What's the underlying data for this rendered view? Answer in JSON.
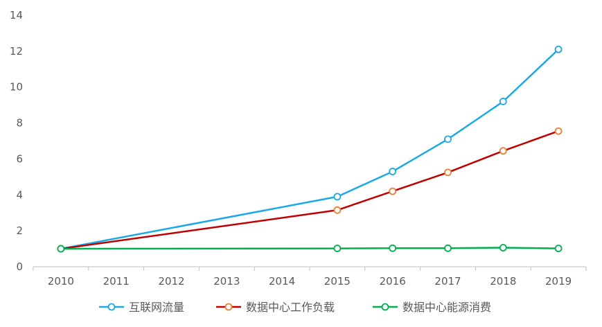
{
  "chart_data": {
    "type": "line",
    "x": [
      "2010",
      "2011",
      "2012",
      "2013",
      "2014",
      "2015",
      "2016",
      "2017",
      "2018",
      "2019"
    ],
    "ylim": [
      0,
      14
    ],
    "yticks": [
      0,
      2,
      4,
      6,
      8,
      10,
      12,
      14
    ],
    "grid": false,
    "legend_position": "bottom",
    "series": [
      {
        "name": "互联网流量",
        "color": "#1aa9e6",
        "points": [
          [
            2010,
            1.0
          ],
          [
            2015,
            3.9
          ],
          [
            2016,
            5.3
          ],
          [
            2017,
            7.1
          ],
          [
            2018,
            9.2
          ],
          [
            2019,
            12.1
          ]
        ]
      },
      {
        "name": "数据中心工作负载",
        "color": "#c00000",
        "marker_color": "#ed7d31",
        "points": [
          [
            2010,
            1.0
          ],
          [
            2015,
            3.15
          ],
          [
            2016,
            4.2
          ],
          [
            2017,
            5.25
          ],
          [
            2018,
            6.45
          ],
          [
            2019,
            7.55
          ]
        ]
      },
      {
        "name": "数据中心能源消费",
        "color": "#00b050",
        "points": [
          [
            2010,
            1.0
          ],
          [
            2015,
            1.02
          ],
          [
            2016,
            1.03
          ],
          [
            2017,
            1.03
          ],
          [
            2018,
            1.06
          ],
          [
            2019,
            1.02
          ]
        ]
      }
    ]
  }
}
